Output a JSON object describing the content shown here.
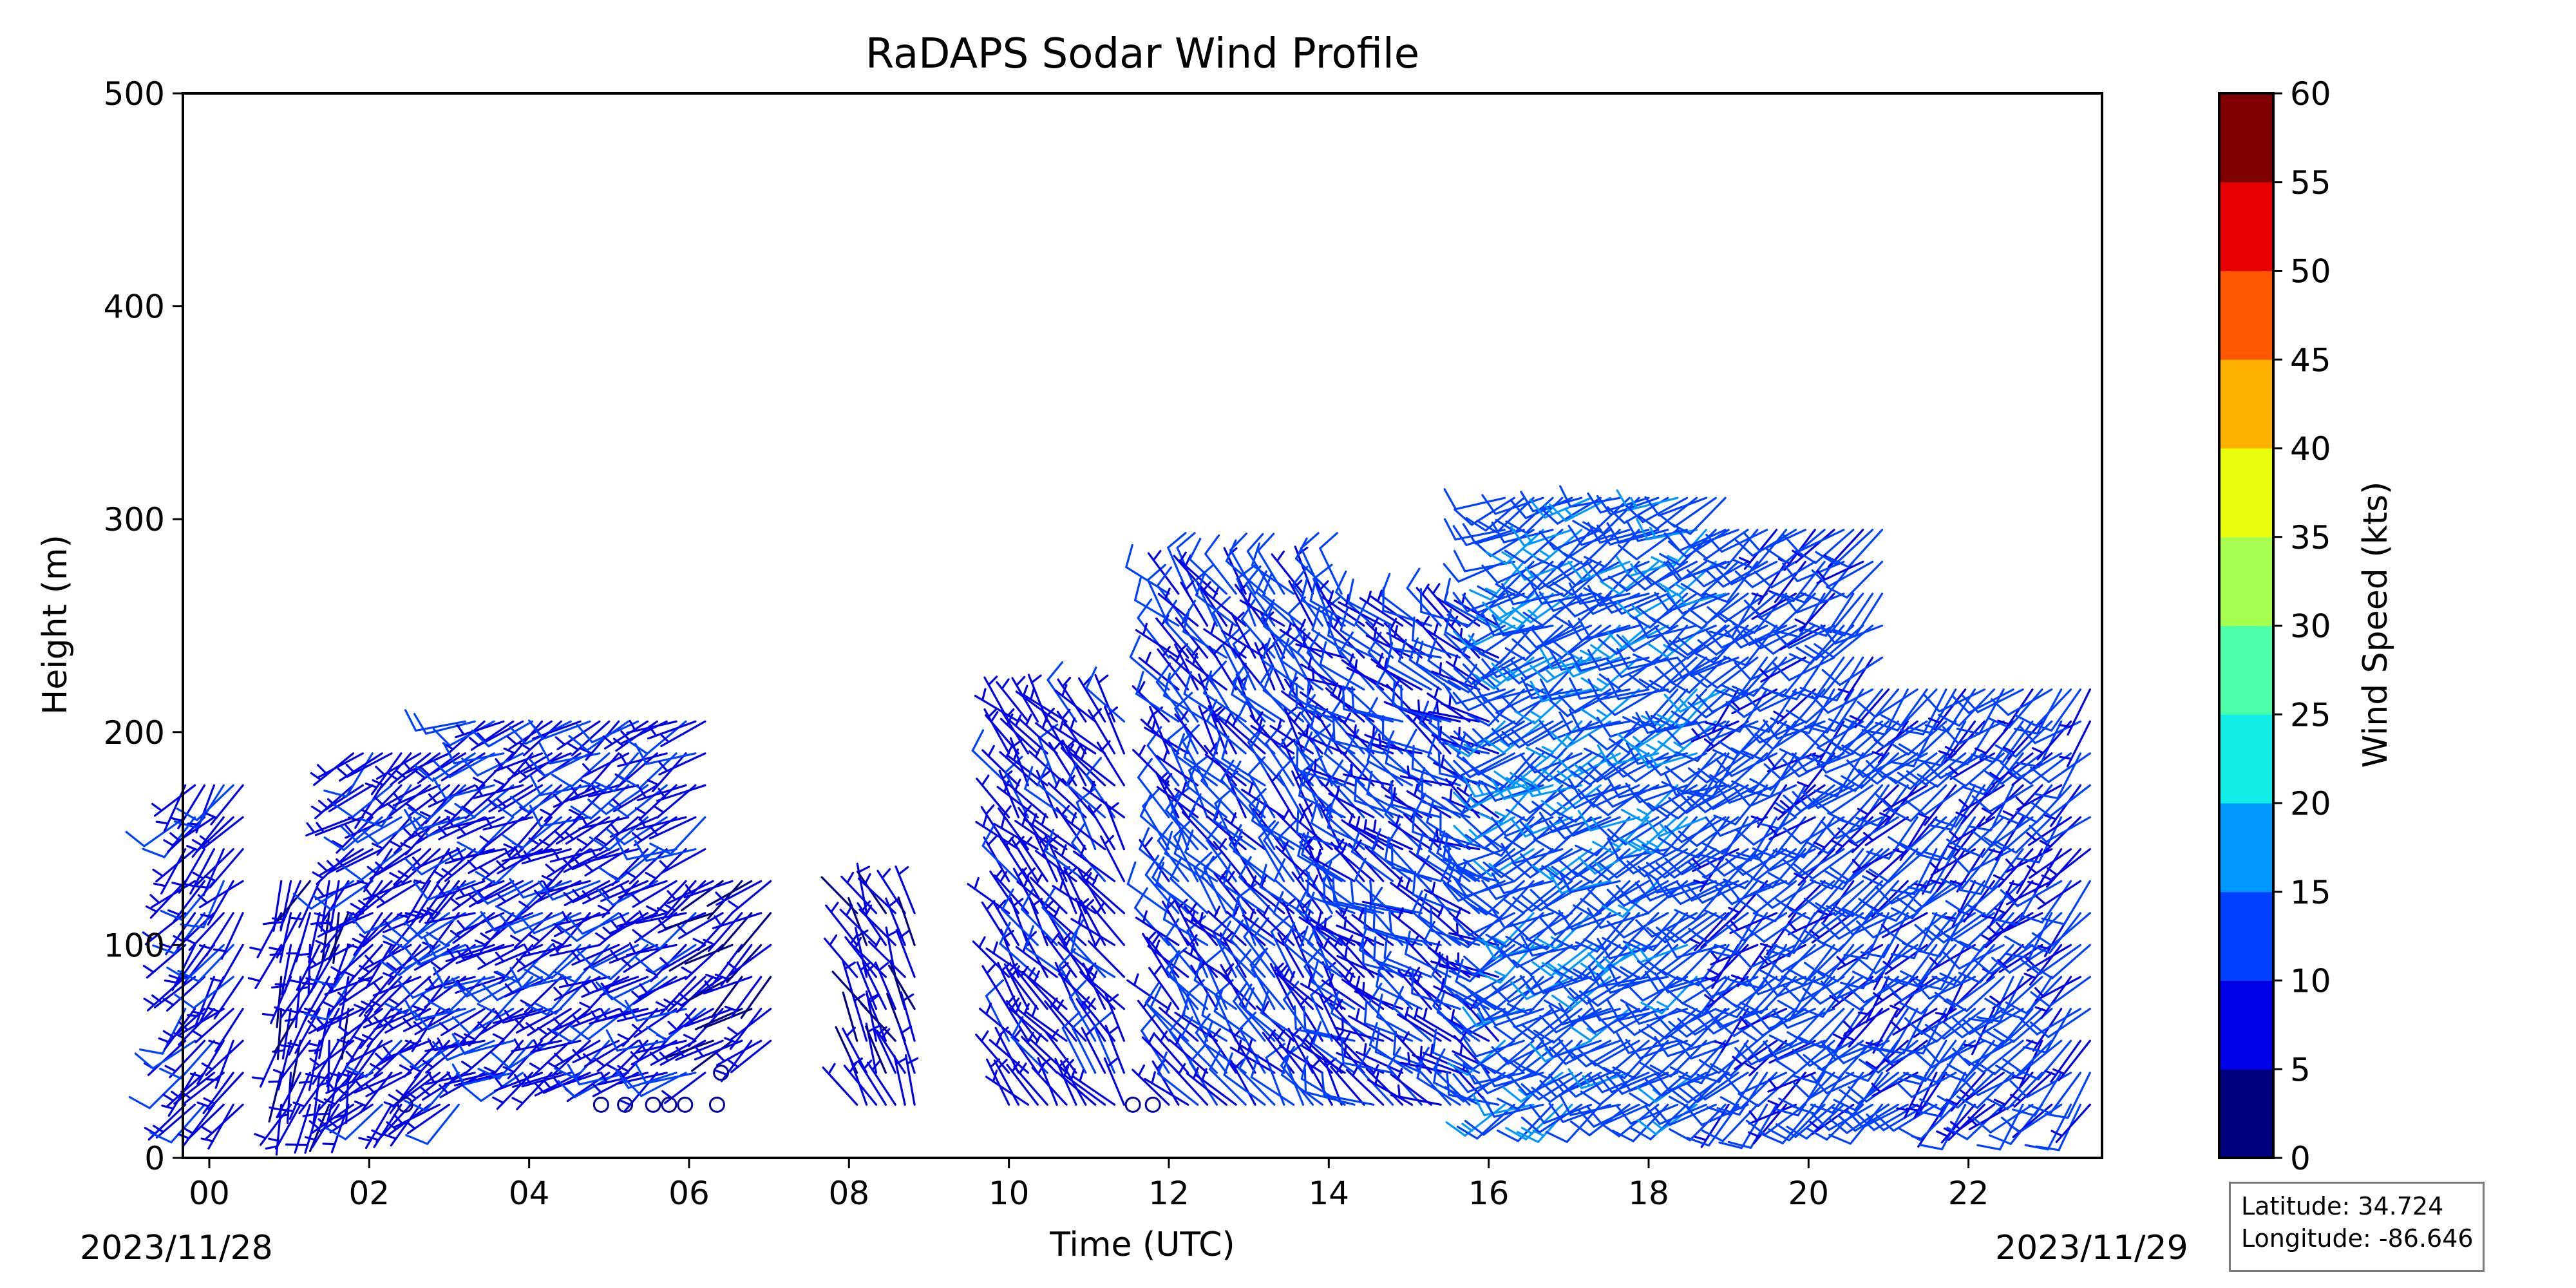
{
  "chart_data": {
    "type": "barbs",
    "title": "RaDAPS Sodar Wind Profile",
    "xlabel": "Time (UTC)",
    "ylabel": "Height (m)",
    "x_range_hours": [
      -0.33,
      23.67
    ],
    "ylim": [
      0,
      500
    ],
    "x_ticks": [
      "00",
      "02",
      "04",
      "06",
      "08",
      "10",
      "12",
      "14",
      "16",
      "18",
      "20",
      "22"
    ],
    "y_ticks": [
      0,
      100,
      200,
      300,
      400,
      500
    ],
    "start_date": "2023/11/28",
    "end_date": "2023/11/29",
    "heights_m": [
      25,
      40,
      55,
      70,
      85,
      100,
      115,
      130,
      145,
      160,
      175,
      190,
      205,
      220,
      235,
      250,
      265,
      280,
      295,
      310
    ],
    "time_segments": [
      {
        "from_h": -0.3,
        "to_h": 0.5,
        "top_m": 175,
        "bottom_m": 25,
        "speed_kts": 8,
        "dir_deg": 220
      },
      {
        "from_h": 0.9,
        "to_h": 1.8,
        "top_m": 130,
        "bottom_m": 25,
        "speed_kts": 7,
        "dir_deg": 200
      },
      {
        "from_h": 1.8,
        "to_h": 3.2,
        "top_m": 190,
        "bottom_m": 25,
        "speed_kts": 8,
        "dir_deg": 230
      },
      {
        "from_h": 3.2,
        "to_h": 6.3,
        "top_m": 205,
        "bottom_m": 40,
        "speed_kts": 9,
        "dir_deg": 240
      },
      {
        "from_h": 6.3,
        "to_h": 7.1,
        "top_m": 130,
        "bottom_m": 55,
        "speed_kts": 6,
        "dir_deg": 235
      },
      {
        "from_h": 8.1,
        "to_h": 8.9,
        "top_m": 115,
        "bottom_m": 25,
        "speed_kts": 7,
        "dir_deg": 330
      },
      {
        "from_h": 10.0,
        "to_h": 11.5,
        "top_m": 205,
        "bottom_m": 25,
        "speed_kts": 8,
        "dir_deg": 320
      },
      {
        "from_h": 12.0,
        "to_h": 14.2,
        "top_m": 265,
        "bottom_m": 25,
        "speed_kts": 10,
        "dir_deg": 320
      },
      {
        "from_h": 14.2,
        "to_h": 16.2,
        "top_m": 250,
        "bottom_m": 25,
        "speed_kts": 10,
        "dir_deg": 300
      },
      {
        "from_h": 16.2,
        "to_h": 19.0,
        "top_m": 310,
        "bottom_m": 25,
        "speed_kts": 13,
        "dir_deg": 240
      },
      {
        "from_h": 19.0,
        "to_h": 21.0,
        "top_m": 295,
        "bottom_m": 25,
        "speed_kts": 12,
        "dir_deg": 230
      },
      {
        "from_h": 21.0,
        "to_h": 23.6,
        "top_m": 220,
        "bottom_m": 25,
        "speed_kts": 11,
        "dir_deg": 225
      }
    ],
    "calm_points": [
      {
        "h": 2.45,
        "m": 25
      },
      {
        "h": 4.9,
        "m": 25
      },
      {
        "h": 5.2,
        "m": 25
      },
      {
        "h": 5.55,
        "m": 25
      },
      {
        "h": 5.75,
        "m": 25
      },
      {
        "h": 5.95,
        "m": 25
      },
      {
        "h": 6.35,
        "m": 25
      },
      {
        "h": 6.4,
        "m": 40
      },
      {
        "h": 11.55,
        "m": 25
      },
      {
        "h": 11.8,
        "m": 25
      }
    ],
    "colorbar": {
      "label": "Wind Speed (kts)",
      "ticks": [
        0,
        5,
        10,
        15,
        20,
        25,
        30,
        35,
        40,
        45,
        50,
        55,
        60
      ],
      "colors": [
        "#00007f",
        "#0000e8",
        "#0040ff",
        "#0098ff",
        "#10eee6",
        "#4dffa9",
        "#a6ff4f",
        "#e9ff0e",
        "#ffb100",
        "#ff5800",
        "#e80000",
        "#7f0000"
      ]
    }
  },
  "location": {
    "latitude_label": "Latitude: 34.724",
    "longitude_label": "Longitude: -86.646"
  }
}
